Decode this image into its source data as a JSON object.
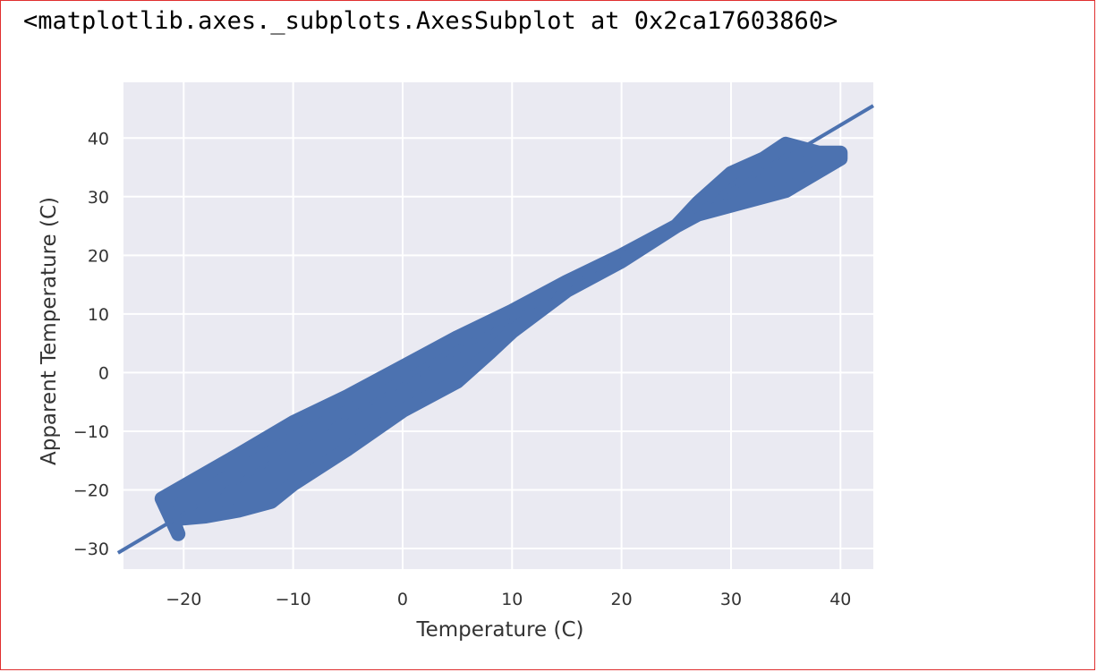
{
  "output_text": "<matplotlib.axes._subplots.AxesSubplot at 0x2ca17603860>",
  "colors": {
    "plot_background": "#eaeaf2",
    "grid": "#ffffff",
    "series": "#4c72b0",
    "frame_border": "#e03030"
  },
  "chart_data": {
    "type": "scatter",
    "title": "",
    "xlabel": "Temperature (C)",
    "ylabel": "Apparent Temperature (C)",
    "xlim": [
      -25.5,
      43
    ],
    "ylim": [
      -33.5,
      49.5
    ],
    "xticks": [
      -20,
      -10,
      0,
      10,
      20,
      30,
      40
    ],
    "xtick_labels": [
      "−20",
      "−10",
      "0",
      "10",
      "20",
      "30",
      "40"
    ],
    "yticks": [
      -30,
      -20,
      -10,
      0,
      10,
      20,
      30,
      40
    ],
    "ytick_labels": [
      "−30",
      "−20",
      "−10",
      "0",
      "10",
      "20",
      "30",
      "40"
    ],
    "grid": true,
    "legend": "none",
    "regression_line": {
      "slope": 1.105,
      "intercept": -2.0
    },
    "point_bands": [
      {
        "name": "upper",
        "points": [
          [
            -22,
            -21.5
          ],
          [
            -15,
            -14
          ],
          [
            -10,
            -8.5
          ],
          [
            -5,
            -4
          ],
          [
            0,
            1
          ],
          [
            5,
            6
          ],
          [
            10,
            10.5
          ],
          [
            15,
            15.5
          ],
          [
            20,
            20
          ],
          [
            25,
            25
          ],
          [
            27,
            29
          ],
          [
            30,
            34
          ],
          [
            33,
            36.5
          ],
          [
            35,
            39
          ],
          [
            38,
            37.5
          ],
          [
            40,
            37.5
          ]
        ]
      },
      {
        "name": "lower",
        "points": [
          [
            -20.5,
            -27.5
          ],
          [
            -21,
            -25
          ],
          [
            -18,
            -24.5
          ],
          [
            -15,
            -23.5
          ],
          [
            -12,
            -22
          ],
          [
            -10,
            -19
          ],
          [
            -5,
            -13
          ],
          [
            0,
            -6.5
          ],
          [
            5,
            -1.5
          ],
          [
            8,
            3.5
          ],
          [
            10,
            7
          ],
          [
            15,
            14
          ],
          [
            20,
            19
          ],
          [
            25,
            25
          ],
          [
            27,
            27
          ],
          [
            30,
            28.5
          ],
          [
            35,
            31
          ],
          [
            40,
            36.5
          ]
        ]
      }
    ]
  }
}
